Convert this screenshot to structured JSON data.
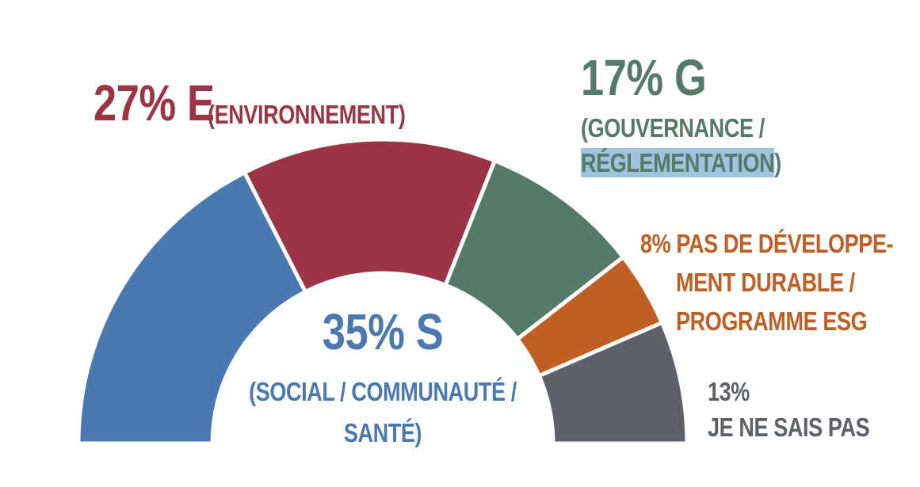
{
  "chart_data": {
    "type": "pie",
    "variant": "half-donut",
    "slices": [
      {
        "value": 35,
        "percent_label": "35% S",
        "label_lines": [
          "(SOCIAL / COMMUNAUTÉ /",
          "SANTÉ)"
        ],
        "color": "#4a78b0"
      },
      {
        "value": 27,
        "percent_label": "27% E",
        "label_lines": [
          "(ENVIRONNEMENT)"
        ],
        "color": "#9b3444"
      },
      {
        "value": 17,
        "percent_label": "17% G",
        "label_lines": [
          "(GOUVERNANCE /",
          "RÉGLEMENTATION",
          ")"
        ],
        "color": "#557a6a"
      },
      {
        "value": 8,
        "percent_label": "8%",
        "label_lines": [
          "PAS DE DÉVELOPPE-",
          "MENT DURABLE /",
          "PROGRAMME ESG"
        ],
        "color": "#c05e24"
      },
      {
        "value": 13,
        "percent_label": "13%",
        "label_lines": [
          "JE NE SAIS PAS"
        ],
        "color": "#5d6068"
      }
    ]
  }
}
